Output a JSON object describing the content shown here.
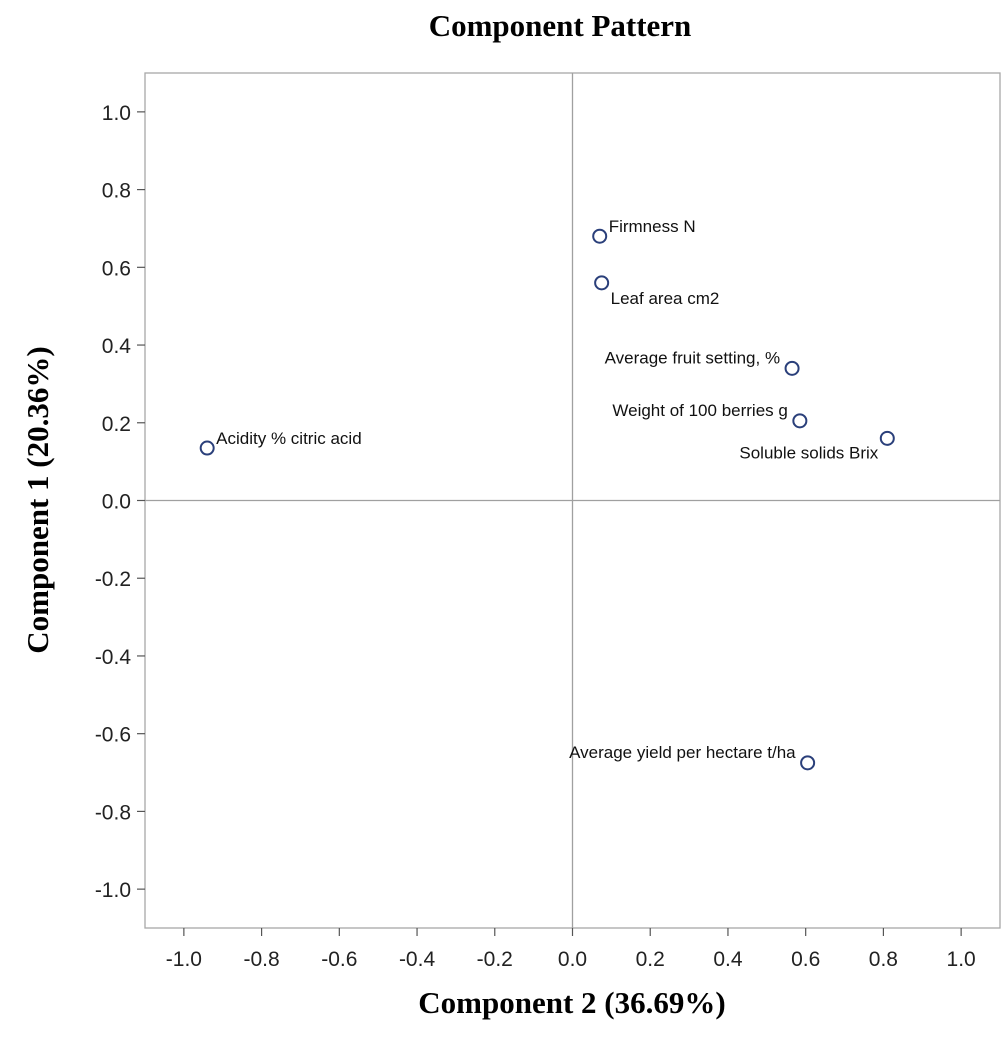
{
  "chart_data": {
    "type": "scatter",
    "title": "Component Pattern",
    "xlabel": "Component 2 (36.69%)",
    "ylabel": "Component 1 (20.36%)",
    "xlim": [
      -1.1,
      1.1
    ],
    "ylim": [
      -1.1,
      1.1
    ],
    "x_ticks": [
      "-1.0",
      "-0.8",
      "-0.6",
      "-0.4",
      "-0.2",
      "0.0",
      "0.2",
      "0.4",
      "0.6",
      "0.8",
      "1.0"
    ],
    "y_ticks": [
      "1.0",
      "0.8",
      "0.6",
      "0.4",
      "0.2",
      "0.0",
      "-0.2",
      "-0.4",
      "-0.6",
      "-0.8",
      "-1.0"
    ],
    "reference_lines": {
      "x": 0,
      "y": 0
    },
    "grid": false,
    "marker_color": "#2a3f7a",
    "points": [
      {
        "label": "Firmness N",
        "x": 0.07,
        "y": 0.68,
        "label_position": "upper-right"
      },
      {
        "label": "Leaf area cm2",
        "x": 0.075,
        "y": 0.56,
        "label_position": "lower-right"
      },
      {
        "label": "Average fruit setting, %",
        "x": 0.565,
        "y": 0.34,
        "label_position": "upper-left"
      },
      {
        "label": "Weight of 100 berries g",
        "x": 0.585,
        "y": 0.205,
        "label_position": "upper-left"
      },
      {
        "label": "Soluble solids Brix",
        "x": 0.81,
        "y": 0.16,
        "label_position": "lower-left"
      },
      {
        "label": "Acidity %  citric acid",
        "x": -0.94,
        "y": 0.135,
        "label_position": "upper-right"
      },
      {
        "label": "Average yield per hectare t/ha",
        "x": 0.605,
        "y": -0.675,
        "label_position": "upper-left"
      }
    ]
  }
}
